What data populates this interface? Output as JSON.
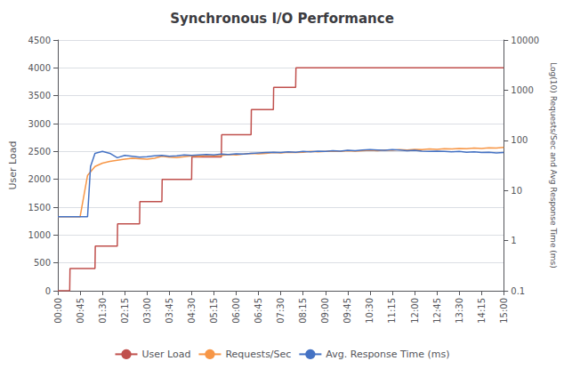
{
  "chart_data": {
    "type": "line",
    "title": "Synchronous I/O Performance",
    "ylabel": "User Load",
    "y2label": "Log(10) Requests/Sec and Avg Response Time (ms)",
    "xlim": [
      0,
      15
    ],
    "xticks": [
      {
        "value": 0,
        "label": "00:00"
      },
      {
        "value": 0.75,
        "label": "00:45"
      },
      {
        "value": 1.5,
        "label": "01:30"
      },
      {
        "value": 2.25,
        "label": "02:15"
      },
      {
        "value": 3,
        "label": "03:00"
      },
      {
        "value": 3.75,
        "label": "03:45"
      },
      {
        "value": 4.5,
        "label": "04:30"
      },
      {
        "value": 5.25,
        "label": "05:15"
      },
      {
        "value": 6,
        "label": "06:00"
      },
      {
        "value": 6.75,
        "label": "06:45"
      },
      {
        "value": 7.5,
        "label": "07:30"
      },
      {
        "value": 8.25,
        "label": "08:15"
      },
      {
        "value": 9,
        "label": "09:00"
      },
      {
        "value": 9.75,
        "label": "09:45"
      },
      {
        "value": 10.5,
        "label": "10:30"
      },
      {
        "value": 11.25,
        "label": "11:15"
      },
      {
        "value": 12,
        "label": "12:00"
      },
      {
        "value": 12.75,
        "label": "12:45"
      },
      {
        "value": 13.5,
        "label": "13:30"
      },
      {
        "value": 14.25,
        "label": "14:15"
      },
      {
        "value": 15,
        "label": "15:00"
      }
    ],
    "ylim": [
      0,
      4500
    ],
    "yticks": [
      0,
      500,
      1000,
      1500,
      2000,
      2500,
      3000,
      3500,
      4000,
      4500
    ],
    "y2lim": [
      0.1,
      10000
    ],
    "y2ticks": [
      0.1,
      1,
      10,
      100,
      1000,
      10000
    ],
    "log": "y2",
    "grid": true,
    "legend": "bottom",
    "series": [
      {
        "name": "User Load",
        "color": "#c0504d",
        "axis": "y",
        "x": [
          0,
          0.4,
          0.41,
          1.25,
          1.26,
          2.0,
          2.01,
          2.75,
          2.76,
          3.5,
          3.51,
          4.5,
          4.51,
          5.5,
          5.51,
          6.5,
          6.51,
          7.25,
          7.26,
          8.0,
          8.01,
          9.0,
          9.01,
          9.75,
          9.76,
          10.5,
          10.51,
          15.0
        ],
        "values": [
          0,
          0,
          400,
          400,
          800,
          800,
          1200,
          1200,
          1600,
          1600,
          2000,
          2000,
          2400,
          2400,
          2800,
          2800,
          3250,
          3250,
          3650,
          3650,
          4000,
          4000,
          4000,
          4000,
          4000,
          4000,
          4000,
          4000
        ]
      },
      {
        "name": "Requests/Sec",
        "color": "#f79646",
        "axis": "y2",
        "x": [
          0,
          0.4,
          0.5,
          0.75,
          1.0,
          1.25,
          1.5,
          1.75,
          2.0,
          2.25,
          2.5,
          2.75,
          3.0,
          3.25,
          3.5,
          3.75,
          4.0,
          4.25,
          4.5,
          4.75,
          5.0,
          5.25,
          5.5,
          5.75,
          6.0,
          6.25,
          6.5,
          6.75,
          7.0,
          7.25,
          7.5,
          7.75,
          8.0,
          8.25,
          8.5,
          8.75,
          9.0,
          9.25,
          9.5,
          9.75,
          10.0,
          10.25,
          10.5,
          10.75,
          11.0,
          11.25,
          11.5,
          11.75,
          12.0,
          12.25,
          12.5,
          12.75,
          13.0,
          13.25,
          13.5,
          13.75,
          14.0,
          14.25,
          14.5,
          14.75,
          15.0
        ],
        "values": [
          3,
          3,
          3,
          3,
          20,
          30,
          35,
          38,
          40,
          42,
          44,
          43,
          42,
          44,
          48,
          46,
          45,
          47,
          49,
          48,
          50,
          49,
          50,
          52,
          51,
          53,
          55,
          54,
          55,
          57,
          56,
          58,
          57,
          58,
          60,
          59,
          60,
          61,
          60,
          62,
          61,
          62,
          63,
          62,
          64,
          63,
          65,
          64,
          66,
          65,
          67,
          66,
          68,
          67,
          69,
          68,
          70,
          69,
          71,
          70,
          72
        ]
      },
      {
        "name": "Avg. Response Time (ms)",
        "color": "#4472c4",
        "axis": "y2",
        "x": [
          0,
          0.4,
          0.5,
          0.75,
          1.0,
          1.1,
          1.25,
          1.5,
          1.75,
          2.0,
          2.25,
          2.5,
          2.75,
          3.0,
          3.25,
          3.5,
          3.75,
          4.0,
          4.25,
          4.5,
          4.75,
          5.0,
          5.25,
          5.5,
          5.75,
          6.0,
          6.25,
          6.5,
          6.75,
          7.0,
          7.25,
          7.5,
          7.75,
          8.0,
          8.25,
          8.5,
          8.75,
          9.0,
          9.25,
          9.5,
          9.75,
          10.0,
          10.25,
          10.5,
          10.75,
          11.0,
          11.25,
          11.5,
          11.75,
          12.0,
          12.25,
          12.5,
          12.75,
          13.0,
          13.25,
          13.5,
          13.75,
          14.0,
          14.25,
          14.5,
          14.75,
          15.0
        ],
        "values": [
          3,
          3,
          3,
          3,
          3,
          30,
          55,
          60,
          55,
          45,
          50,
          48,
          46,
          47,
          49,
          50,
          48,
          49,
          51,
          50,
          51,
          52,
          51,
          53,
          52,
          54,
          53,
          55,
          56,
          57,
          58,
          57,
          59,
          58,
          60,
          59,
          61,
          60,
          62,
          61,
          63,
          62,
          64,
          65,
          64,
          63,
          65,
          64,
          62,
          63,
          61,
          60,
          61,
          60,
          59,
          60,
          58,
          59,
          57,
          58,
          56,
          57
        ]
      }
    ]
  }
}
